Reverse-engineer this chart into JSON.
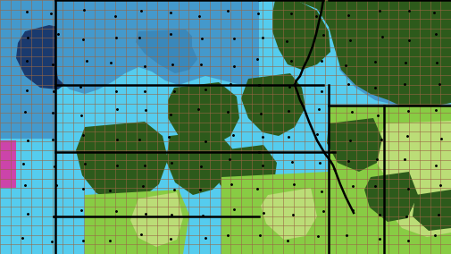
{
  "figsize": [
    5.05,
    2.84
  ],
  "dpi": 100,
  "colors": {
    "dark_navy": "#1a3a6e",
    "medium_blue": "#4499cc",
    "light_blue": "#55ccee",
    "dark_green": "#2d5a1b",
    "light_green": "#88cc44",
    "pale_green": "#bbdd77",
    "magenta": "#cc44aa",
    "border_color": "#000000",
    "county_border": "#996644"
  }
}
